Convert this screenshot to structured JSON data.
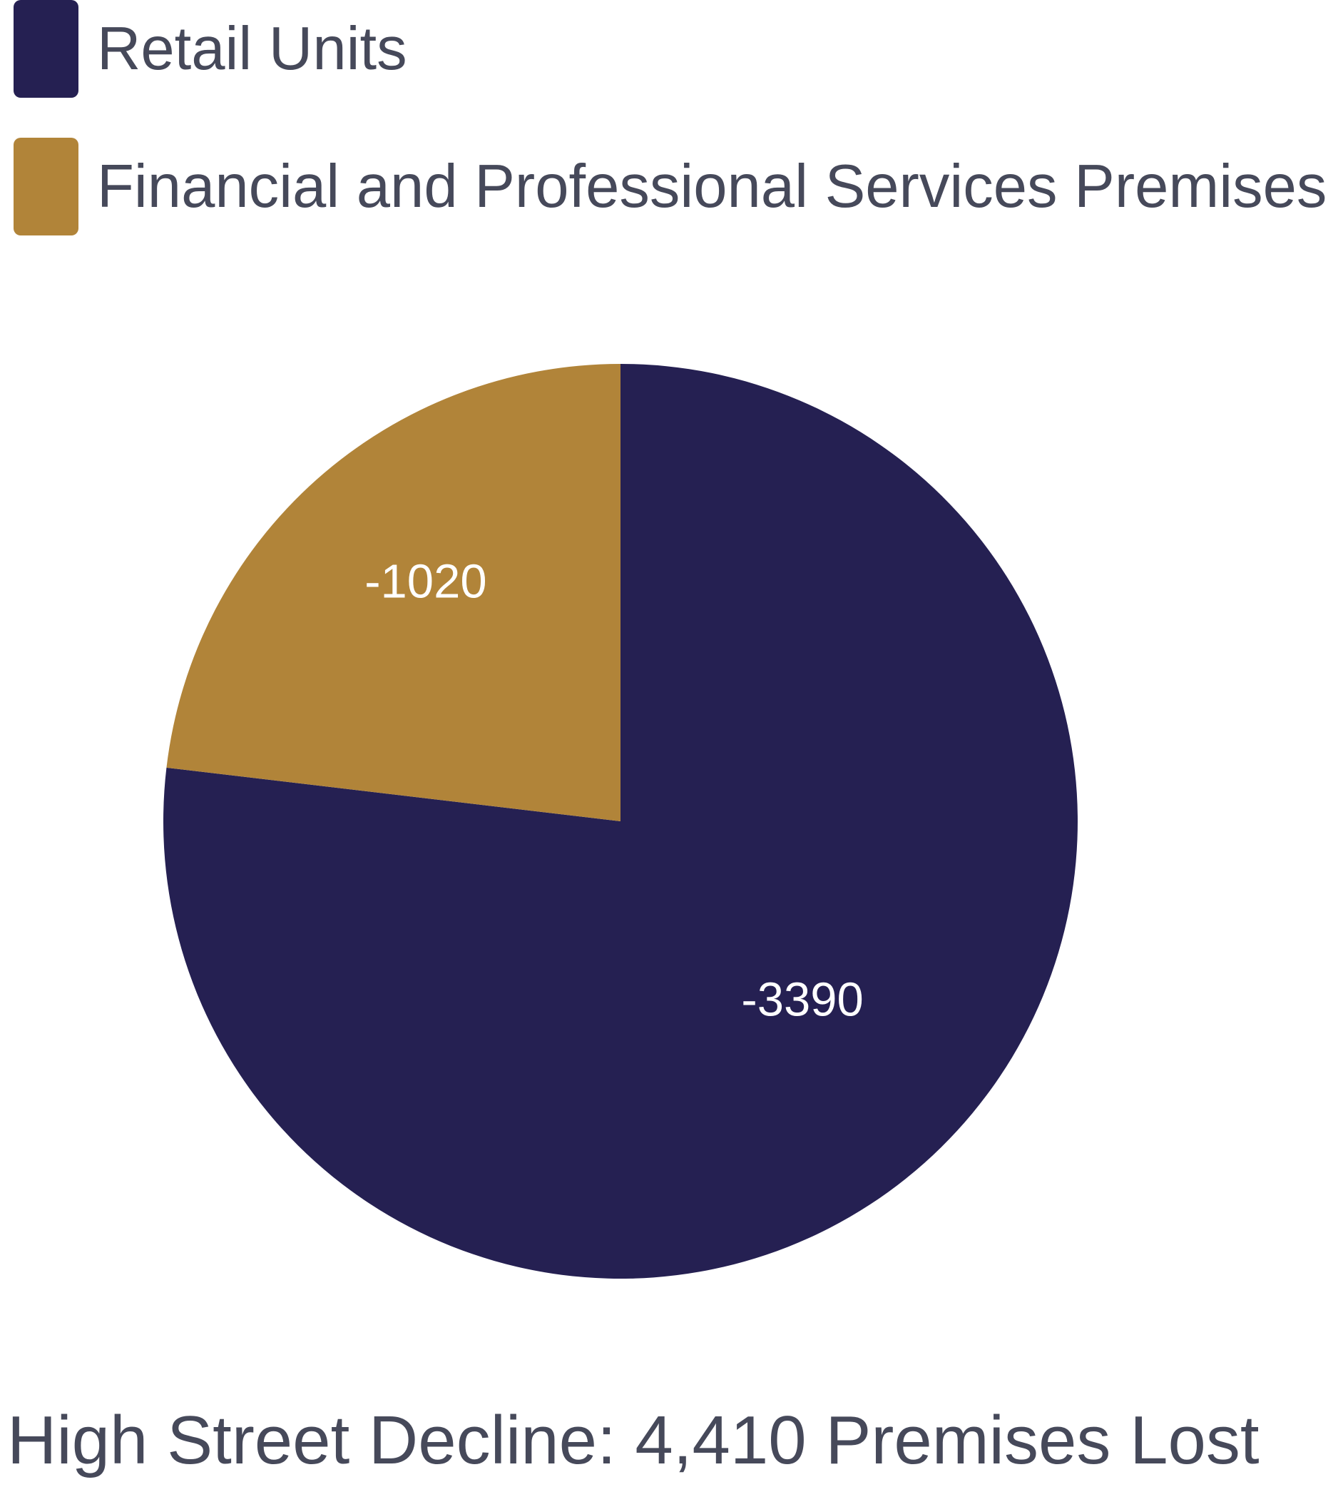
{
  "chart_data": {
    "type": "pie",
    "title": "High Street Decline: 4,410 Premises Lost",
    "categories": [
      "Retail Units",
      "Financial and Professional Services Premises"
    ],
    "values": [
      -3390,
      -1020
    ],
    "total_shown_in_title": "4,410",
    "slices": [
      {
        "label": "Retail Units",
        "value": -3390,
        "display_value": "-3390",
        "color": "#252052",
        "percent_of_total": 76.9,
        "label_pos": {
          "x": 0.699,
          "y": 0.695
        }
      },
      {
        "label": "Financial and Professional Services Premises",
        "value": -1020,
        "display_value": "-1020",
        "color": "#B18439",
        "percent_of_total": 23.1,
        "label_pos": {
          "x": 0.287,
          "y": 0.238
        }
      }
    ],
    "start_angle_deg": 0,
    "direction": "clockwise",
    "legend_position": "top-left",
    "data_labels": "inside",
    "data_label_color": "#FFFFFF",
    "grid": false
  },
  "legend": {
    "items": [
      {
        "label": "Retail Units",
        "color": "#252052"
      },
      {
        "label": "Financial and Professional Services Premises",
        "color": "#B18439"
      }
    ]
  },
  "footer": {
    "title": "High Street Decline: 4,410 Premises Lost"
  },
  "colors": {
    "background": "#FFFFFF",
    "text": "#46495A",
    "navy": "#252052",
    "gold": "#B18439"
  }
}
